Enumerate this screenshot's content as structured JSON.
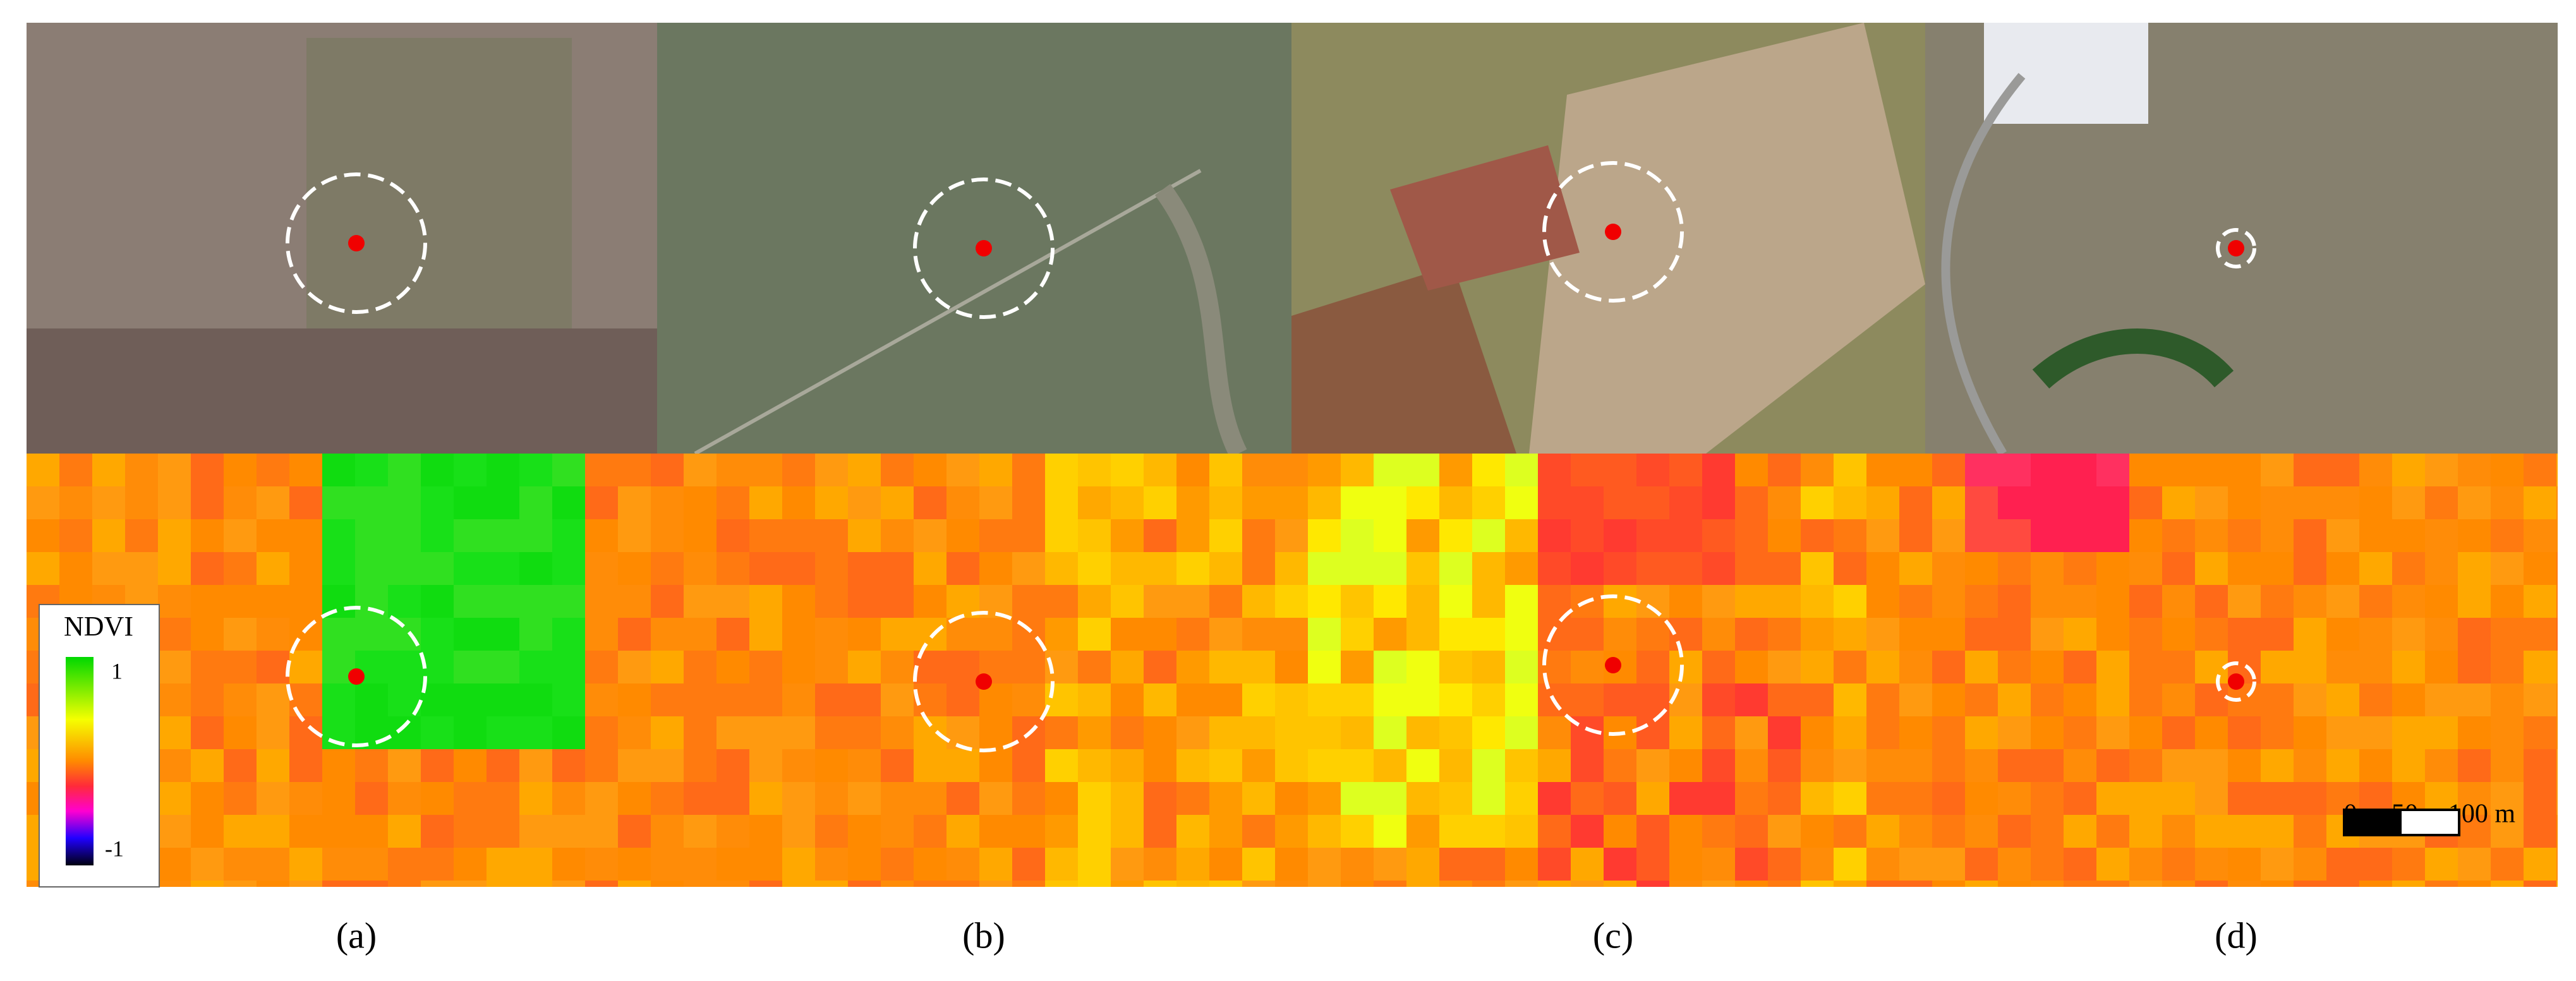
{
  "panels": [
    {
      "label": "(a)"
    },
    {
      "label": "(b)"
    },
    {
      "label": "(c)"
    },
    {
      "label": "(d)"
    }
  ],
  "legend": {
    "title": "NDVI",
    "max": "1",
    "min": "-1"
  },
  "scale_bar": {
    "ticks": [
      "0",
      "50",
      "100 m"
    ]
  }
}
